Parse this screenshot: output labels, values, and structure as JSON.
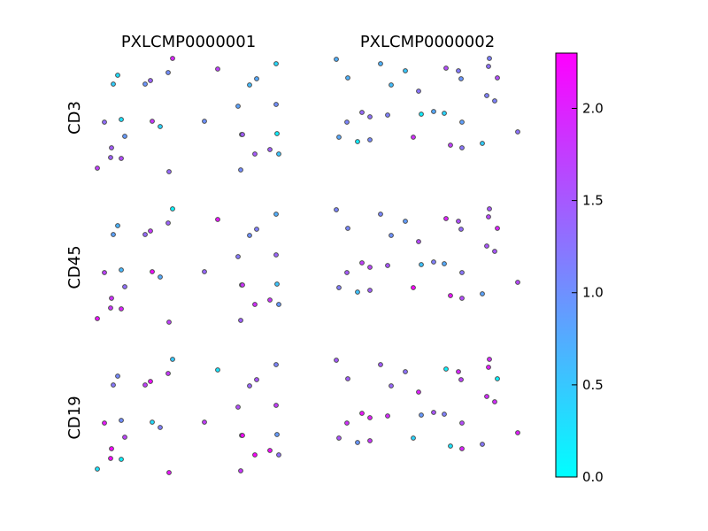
{
  "chart_data": {
    "type": "scatter",
    "columns": [
      "PXLCMP0000001",
      "PXLCMP0000002"
    ],
    "rows": [
      "CD3",
      "CD45",
      "CD19"
    ],
    "colorbar": {
      "range": [
        0.0,
        2.3
      ],
      "ticks": [
        {
          "value": 0.0,
          "label": "0.0"
        },
        {
          "value": 0.5,
          "label": "0.5"
        },
        {
          "value": 1.0,
          "label": "1.0"
        },
        {
          "value": 1.5,
          "label": "1.5"
        },
        {
          "value": 2.0,
          "label": "2.0"
        }
      ],
      "colormap": [
        "#00ffff",
        "#ff00ff"
      ]
    },
    "points": {
      "PXLCMP0000001": [
        [
          0.12,
          0.12
        ],
        [
          0.19,
          0.19
        ],
        [
          0.62,
          0.61
        ],
        [
          0.42,
          0.41
        ],
        [
          0.45,
          0.44
        ],
        [
          0.88,
          0.84
        ],
        [
          0.78,
          0.72
        ],
        [
          0.34,
          0.32
        ],
        [
          0.29,
          0.22
        ],
        [
          0.2,
          0.06
        ],
        [
          0.59,
          0.55
        ],
        [
          0.1,
          0.11
        ],
        [
          0.8,
          0.78
        ],
        [
          0.14,
          0.19
        ],
        [
          0.4,
          0.47
        ],
        [
          0.38,
          0.33
        ],
        [
          0.43,
          0.45
        ],
        [
          0.32,
          0.51
        ],
        [
          0.11,
          0.04
        ],
        [
          0.74,
          0.5
        ],
        [
          0.66,
          0.62
        ],
        [
          0.8,
          0.44
        ],
        [
          0.31,
          0.1
        ],
        [
          0.07,
          0.03
        ],
        [
          0.68,
          0.54
        ],
        [
          0.77,
          0.61
        ],
        [
          0.79,
          0.72
        ],
        [
          0.82,
          0.24
        ],
        [
          0.22,
          0.8
        ],
        [
          0.65,
          0.62
        ]
      ],
      "PXLCMP0000002": [
        [
          0.22,
          0.44
        ],
        [
          0.22,
          0.42
        ],
        [
          0.22,
          0.21
        ],
        [
          0.7,
          0.71
        ],
        [
          0.5,
          0.54
        ],
        [
          0.47,
          0.53
        ],
        [
          0.58,
          0.53
        ],
        [
          0.46,
          0.06
        ],
        [
          0.42,
          0.01
        ],
        [
          0.61,
          0.11
        ],
        [
          0.68,
          0.73
        ],
        [
          0.55,
          0.42
        ],
        [
          0.53,
          0.56
        ],
        [
          0.48,
          0.51
        ],
        [
          0.66,
          0.5
        ],
        [
          0.49,
          0.47
        ],
        [
          0.59,
          0.51
        ],
        [
          0.49,
          0.51
        ],
        [
          0.08,
          0.03
        ],
        [
          0.36,
          0.29
        ],
        [
          0.06,
          0.31
        ],
        [
          0.16,
          0.69
        ],
        [
          0.51,
          0.08
        ],
        [
          0.09,
          0.03
        ],
        [
          0.44,
          0.5
        ],
        [
          0.82,
          0.83
        ],
        [
          0.73,
          0.8
        ],
        [
          0.6,
          0.44
        ],
        [
          0.14,
          0.26
        ],
        [
          0.55,
          0.55
        ]
      ]
    }
  }
}
